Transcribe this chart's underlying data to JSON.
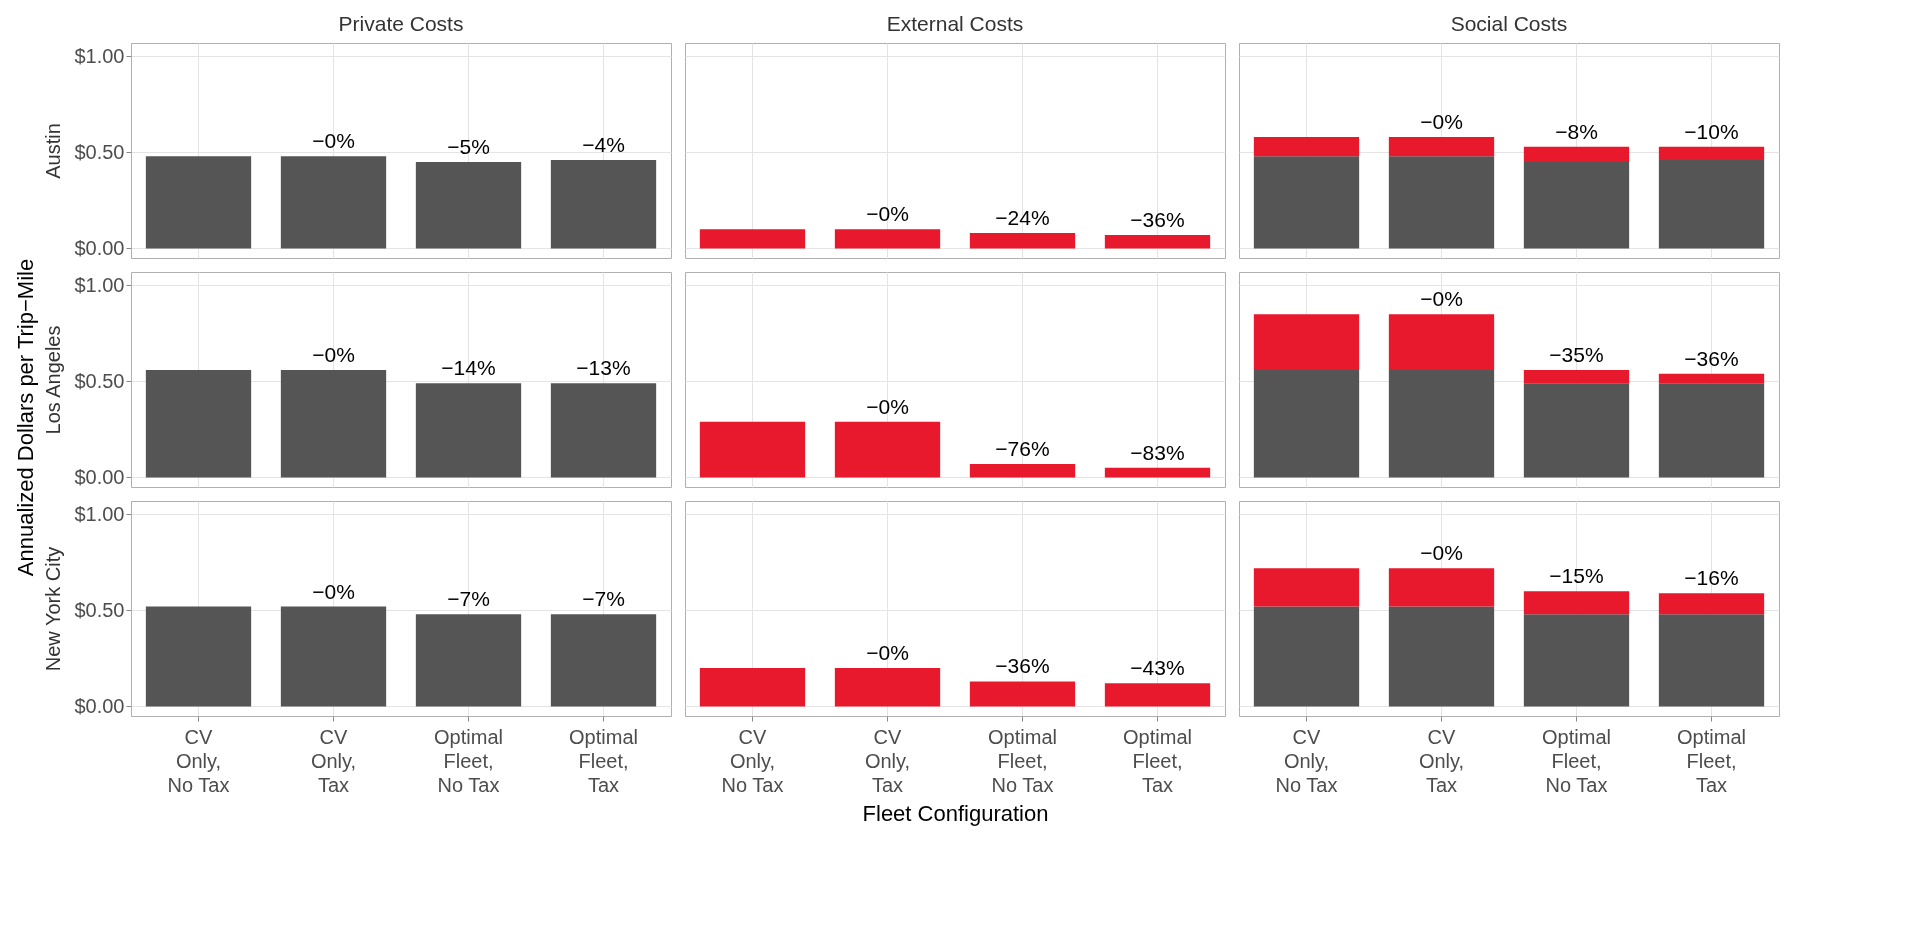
{
  "chart_data": [
    {
      "type": "bar",
      "title": "Private Costs",
      "ylabel": "Austin",
      "categories": [
        "CV Only, No Tax",
        "CV Only, Tax",
        "Optimal Fleet, No Tax",
        "Optimal Fleet, Tax"
      ],
      "ylim": [
        -0.05,
        1.07
      ],
      "yticks": [
        {
          "value": 0,
          "label": "$0.00"
        },
        {
          "value": 0.5,
          "label": "$0.50"
        },
        {
          "value": 1,
          "label": "$1.00"
        }
      ],
      "grid": true,
      "tick_labels": "y",
      "series": [
        {
          "color": "#555555",
          "values": [
            0.48,
            0.48,
            0.45,
            0.46
          ]
        }
      ],
      "annotations": [
        {
          "text": "−0%",
          "x": "CV Only, Tax",
          "y": 0.48
        },
        {
          "text": "−5%",
          "x": "Optimal Fleet, No Tax",
          "y": 0.45
        },
        {
          "text": "−4%",
          "x": "Optimal Fleet, Tax",
          "y": 0.46
        }
      ]
    },
    {
      "type": "bar",
      "title": "External Costs",
      "categories": [
        "CV Only, No Tax",
        "CV Only, Tax",
        "Optimal Fleet, No Tax",
        "Optimal Fleet, Tax"
      ],
      "ylim": [
        -0.05,
        1.07
      ],
      "yticks": [
        0,
        0.5,
        1
      ],
      "grid": true,
      "tick_labels": false,
      "series": [
        {
          "color": "#e8192c",
          "values": [
            0.1,
            0.1,
            0.08,
            0.07
          ]
        }
      ],
      "annotations": [
        {
          "text": "−0%",
          "x": "CV Only, Tax",
          "y": 0.1
        },
        {
          "text": "−24%",
          "x": "Optimal Fleet, No Tax",
          "y": 0.08
        },
        {
          "text": "−36%",
          "x": "Optimal Fleet, Tax",
          "y": 0.07
        }
      ]
    },
    {
      "type": "bar",
      "title": "Social Costs",
      "categories": [
        "CV Only, No Tax",
        "CV Only, Tax",
        "Optimal Fleet, No Tax",
        "Optimal Fleet, Tax"
      ],
      "ylim": [
        -0.05,
        1.07
      ],
      "yticks": [
        0,
        0.5,
        1
      ],
      "grid": true,
      "tick_labels": false,
      "stacked": true,
      "series": [
        {
          "color": "#555555",
          "values": [
            0.48,
            0.48,
            0.45,
            0.46
          ]
        },
        {
          "color": "#e8192c",
          "values": [
            0.1,
            0.1,
            0.08,
            0.07
          ]
        }
      ],
      "annotations": [
        {
          "text": "−0%",
          "x": "CV Only, Tax",
          "y": 0.58
        },
        {
          "text": "−8%",
          "x": "Optimal Fleet, No Tax",
          "y": 0.53
        },
        {
          "text": "−10%",
          "x": "Optimal Fleet, Tax",
          "y": 0.53
        }
      ]
    },
    {
      "type": "bar",
      "ylabel": "Los Angeles",
      "categories": [
        "CV Only, No Tax",
        "CV Only, Tax",
        "Optimal Fleet, No Tax",
        "Optimal Fleet, Tax"
      ],
      "ylim": [
        -0.05,
        1.07
      ],
      "yticks": [
        {
          "value": 0,
          "label": "$0.00"
        },
        {
          "value": 0.5,
          "label": "$0.50"
        },
        {
          "value": 1,
          "label": "$1.00"
        }
      ],
      "grid": true,
      "tick_labels": "y",
      "series": [
        {
          "color": "#555555",
          "values": [
            0.56,
            0.56,
            0.49,
            0.49
          ]
        }
      ],
      "annotations": [
        "Annualized Dollars per Trip−Mile",
        {
          "text": "−0%",
          "x": "CV Only, Tax",
          "y": 0.56
        },
        {
          "text": "−14%",
          "x": "Optimal Fleet, No Tax",
          "y": 0.49
        },
        {
          "text": "−13%",
          "x": "Optimal Fleet, Tax",
          "y": 0.49
        }
      ]
    },
    {
      "type": "bar",
      "categories": [
        "CV Only, No Tax",
        "CV Only, Tax",
        "Optimal Fleet, No Tax",
        "Optimal Fleet, Tax"
      ],
      "ylim": [
        -0.05,
        1.07
      ],
      "yticks": [
        0,
        0.5,
        1
      ],
      "grid": true,
      "tick_labels": false,
      "series": [
        {
          "color": "#e8192c",
          "values": [
            0.29,
            0.29,
            0.07,
            0.05
          ]
        }
      ],
      "annotations": [
        {
          "text": "−0%",
          "x": "CV Only, Tax",
          "y": 0.29
        },
        {
          "text": "−76%",
          "x": "Optimal Fleet, No Tax",
          "y": 0.07
        },
        {
          "text": "−83%",
          "x": "Optimal Fleet, Tax",
          "y": 0.05
        }
      ]
    },
    {
      "type": "bar",
      "categories": [
        "CV Only, No Tax",
        "CV Only, Tax",
        "Optimal Fleet, No Tax",
        "Optimal Fleet, Tax"
      ],
      "ylim": [
        -0.05,
        1.07
      ],
      "yticks": [
        0,
        0.5,
        1
      ],
      "grid": true,
      "tick_labels": false,
      "stacked": true,
      "series": [
        {
          "color": "#555555",
          "values": [
            0.56,
            0.56,
            0.49,
            0.49
          ]
        },
        {
          "color": "#e8192c",
          "values": [
            0.29,
            0.29,
            0.07,
            0.05
          ]
        }
      ],
      "annotations": [
        {
          "text": "−0%",
          "x": "CV Only, Tax",
          "y": 0.85
        },
        {
          "text": "−35%",
          "x": "Optimal Fleet, No Tax",
          "y": 0.56
        },
        {
          "text": "−36%",
          "x": "Optimal Fleet, Tax",
          "y": 0.54
        }
      ]
    },
    {
      "type": "bar",
      "ylabel": "New York City",
      "categories": [
        "CV Only, No Tax",
        "CV Only, Tax",
        "Optimal Fleet, No Tax",
        "Optimal Fleet, Tax"
      ],
      "ylim": [
        -0.05,
        1.07
      ],
      "yticks": [
        {
          "value": 0,
          "label": "$0.00"
        },
        {
          "value": 0.5,
          "label": "$0.50"
        },
        {
          "value": 1,
          "label": "$1.00"
        }
      ],
      "grid": true,
      "series": [
        {
          "color": "#555555",
          "values": [
            0.52,
            0.52,
            0.48,
            0.48
          ]
        }
      ],
      "annotations": [
        {
          "text": "−0%",
          "x": "CV Only, Tax",
          "y": 0.52
        },
        {
          "text": "−7%",
          "x": "Optimal Fleet, No Tax",
          "y": 0.48
        },
        {
          "text": "−7%",
          "x": "Optimal Fleet, Tax",
          "y": 0.48
        }
      ]
    },
    {
      "type": "bar",
      "xlabel": "Fleet Configuration",
      "categories": [
        "CV Only, No Tax",
        "CV Only, Tax",
        "Optimal Fleet, No Tax",
        "Optimal Fleet, Tax"
      ],
      "ylim": [
        -0.05,
        1.07
      ],
      "yticks": [
        0,
        0.5,
        1
      ],
      "grid": true,
      "tick_labels": "x",
      "series": [
        {
          "color": "#e8192c",
          "values": [
            0.2,
            0.2,
            0.13,
            0.12
          ]
        }
      ],
      "annotations": [
        {
          "text": "−0%",
          "x": "CV Only, Tax",
          "y": 0.2
        },
        {
          "text": "−36%",
          "x": "Optimal Fleet, No Tax",
          "y": 0.13
        },
        {
          "text": "−43%",
          "x": "Optimal Fleet, Tax",
          "y": 0.12
        }
      ]
    },
    {
      "type": "bar",
      "categories": [
        "CV Only, No Tax",
        "CV Only, Tax",
        "Optimal Fleet, No Tax",
        "Optimal Fleet, Tax"
      ],
      "ylim": [
        -0.05,
        1.07
      ],
      "yticks": [
        0,
        0.5,
        1
      ],
      "grid": true,
      "tick_labels": "x",
      "stacked": true,
      "series": [
        {
          "color": "#555555",
          "values": [
            0.52,
            0.52,
            0.48,
            0.48
          ]
        },
        {
          "color": "#e8192c",
          "values": [
            0.2,
            0.2,
            0.12,
            0.11
          ]
        }
      ],
      "annotations": [
        {
          "text": "−0%",
          "x": "CV Only, Tax",
          "y": 0.72
        },
        {
          "text": "−15%",
          "x": "Optimal Fleet, No Tax",
          "y": 0.6
        },
        {
          "text": "−16%",
          "x": "Optimal Fleet, Tax",
          "y": 0.59
        }
      ]
    }
  ]
}
